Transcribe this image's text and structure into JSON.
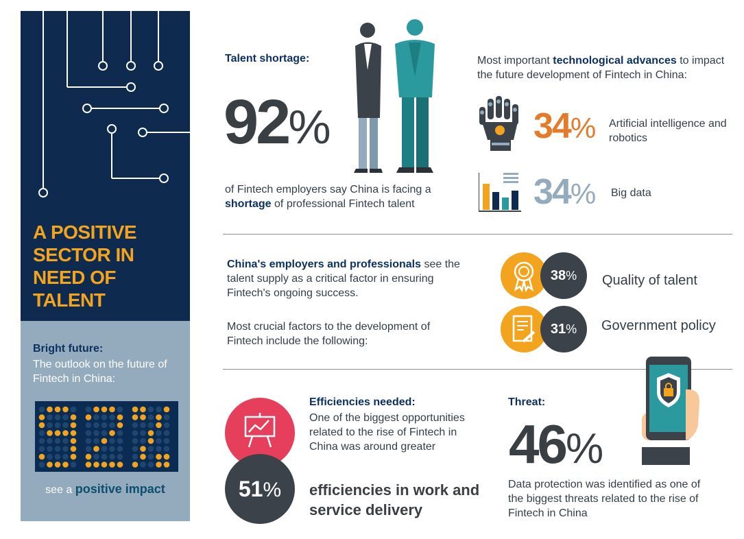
{
  "sidebar": {
    "headline": "A POSITIVE SECTOR IN NEED OF TALENT",
    "bright_future_title": "Bright future:",
    "bright_future_text": "The outlook on the future of Fintech in China:",
    "led_value": "92%",
    "impact_prefix": "see a",
    "impact_strong": "positive impact"
  },
  "talent": {
    "label": "Talent shortage:",
    "number": "92",
    "pct": "%",
    "text_before": "of Fintech employers say China is facing a",
    "text_keyword": "shortage",
    "text_after": "of professional Fintech talent"
  },
  "tech": {
    "intro_before": "Most important",
    "intro_keyword": "technological advances",
    "intro_after": "to impact the future development of Fintech in China:",
    "items": [
      {
        "number": "34",
        "pct": "%",
        "label": "Artificial intelligence and robotics",
        "icon": "robot-hand-icon",
        "color": "#e37b2b"
      },
      {
        "number": "34",
        "pct": "%",
        "label": "Big data",
        "icon": "bar-chart-icon",
        "color": "#93abbd"
      }
    ]
  },
  "factors": {
    "intro_keyword": "China's employers and professionals",
    "intro_after": "see the talent supply as a critical factor in ensuring Fintech's ongoing success.",
    "intro2": "Most crucial factors to the development of Fintech include the following:",
    "items": [
      {
        "number": "38",
        "pct": "%",
        "label": "Quality of talent",
        "icon": "award-ribbon-icon"
      },
      {
        "number": "31",
        "pct": "%",
        "label": "Government policy",
        "icon": "document-pen-icon"
      }
    ]
  },
  "efficiency": {
    "title": "Efficiencies needed:",
    "text": "One of the biggest opportunities related to the rise of Fintech in China was around greater",
    "number": "51",
    "pct": "%",
    "big_text": "efficiencies in work and service delivery"
  },
  "threat": {
    "title": "Threat:",
    "number": "46",
    "pct": "%",
    "text": "Data protection was identified as one of the biggest threats related to the rise of Fintech in China"
  },
  "colors": {
    "navy": "#0e2a4f",
    "orange": "#f3a41f",
    "steel": "#93abbd",
    "red": "#e63f5c",
    "dark": "#3b4249",
    "teal": "#2a9a9f"
  }
}
